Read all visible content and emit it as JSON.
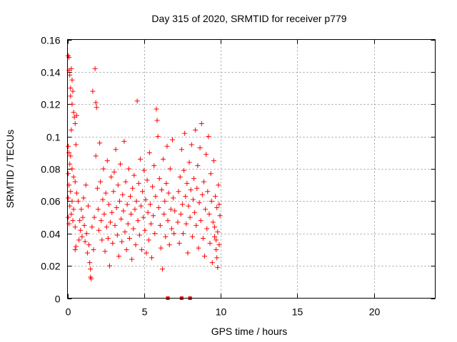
{
  "chart_data": {
    "type": "scatter",
    "title": "Day 315 of 2020, SRMTID for receiver p779",
    "xlabel": "GPS time / hours",
    "ylabel": "SRMTID / TECUs",
    "xlim": [
      0,
      24
    ],
    "ylim": [
      0,
      0.16
    ],
    "xticks": [
      0,
      5,
      10,
      15,
      20
    ],
    "xtick_labels": [
      "0",
      "5",
      "10",
      "15",
      "20"
    ],
    "yticks": [
      0,
      0.02,
      0.04,
      0.06,
      0.08,
      0.1,
      0.12,
      0.14,
      0.16
    ],
    "ytick_labels": [
      "0",
      "0.02",
      "0.04",
      "0.06",
      "0.08",
      "0.1",
      "0.12",
      "0.14",
      "0.16"
    ],
    "grid": true,
    "marker": "plus",
    "color": "#ff0000",
    "baseline_marks": [
      6.55,
      7.45,
      8.0
    ],
    "series": [
      {
        "name": "SRMTID",
        "points": [
          [
            0.05,
            0.15
          ],
          [
            0.1,
            0.149
          ],
          [
            0.1,
            0.141
          ],
          [
            0.15,
            0.138
          ],
          [
            0.2,
            0.13
          ],
          [
            0.25,
            0.142
          ],
          [
            0.3,
            0.135
          ],
          [
            0.2,
            0.125
          ],
          [
            0.35,
            0.128
          ],
          [
            0.3,
            0.12
          ],
          [
            0.4,
            0.115
          ],
          [
            0.45,
            0.112
          ],
          [
            0.5,
            0.108
          ],
          [
            0.25,
            0.104
          ],
          [
            0.6,
            0.113
          ],
          [
            0.55,
            0.095
          ],
          [
            0.05,
            0.094
          ],
          [
            0.1,
            0.09
          ],
          [
            0.2,
            0.088
          ],
          [
            0.15,
            0.083
          ],
          [
            0.3,
            0.08
          ],
          [
            0.05,
            0.077
          ],
          [
            0.4,
            0.075
          ],
          [
            0.5,
            0.072
          ],
          [
            0.1,
            0.07
          ],
          [
            0.2,
            0.066
          ],
          [
            0.05,
            0.062
          ],
          [
            0.3,
            0.06
          ],
          [
            0.15,
            0.057
          ],
          [
            0.4,
            0.055
          ],
          [
            0.25,
            0.052
          ],
          [
            0.05,
            0.05
          ],
          [
            0.35,
            0.048
          ],
          [
            0.1,
            0.046
          ],
          [
            0.5,
            0.044
          ],
          [
            0.6,
            0.065
          ],
          [
            0.7,
            0.06
          ],
          [
            0.55,
            0.032
          ],
          [
            0.5,
            0.03
          ],
          [
            0.75,
            0.036
          ],
          [
            0.8,
            0.048
          ],
          [
            0.85,
            0.042
          ],
          [
            0.9,
            0.055
          ],
          [
            0.95,
            0.038
          ],
          [
            1.0,
            0.05
          ],
          [
            1.05,
            0.062
          ],
          [
            1.1,
            0.045
          ],
          [
            1.15,
            0.035
          ],
          [
            1.2,
            0.07
          ],
          [
            1.25,
            0.04
          ],
          [
            1.3,
            0.028
          ],
          [
            1.35,
            0.057
          ],
          [
            1.4,
            0.033
          ],
          [
            1.45,
            0.022
          ],
          [
            1.5,
            0.018
          ],
          [
            1.5,
            0.013
          ],
          [
            1.55,
            0.012
          ],
          [
            1.6,
            0.044
          ],
          [
            1.65,
            0.128
          ],
          [
            1.7,
            0.03
          ],
          [
            1.75,
            0.05
          ],
          [
            1.8,
            0.142
          ],
          [
            1.85,
            0.121
          ],
          [
            1.9,
            0.118
          ],
          [
            1.85,
            0.088
          ],
          [
            1.95,
            0.068
          ],
          [
            2.0,
            0.055
          ],
          [
            2.05,
            0.042
          ],
          [
            2.1,
            0.096
          ],
          [
            2.15,
            0.072
          ],
          [
            2.2,
            0.048
          ],
          [
            2.25,
            0.036
          ],
          [
            2.3,
            0.061
          ],
          [
            2.35,
            0.08
          ],
          [
            2.4,
            0.052
          ],
          [
            2.45,
            0.029
          ],
          [
            2.5,
            0.065
          ],
          [
            2.55,
            0.044
          ],
          [
            2.6,
            0.085
          ],
          [
            2.65,
            0.037
          ],
          [
            2.7,
            0.058
          ],
          [
            2.75,
            0.02
          ],
          [
            2.8,
            0.047
          ],
          [
            2.85,
            0.075
          ],
          [
            2.9,
            0.053
          ],
          [
            2.95,
            0.034
          ],
          [
            3.0,
            0.066
          ],
          [
            3.05,
            0.078
          ],
          [
            3.1,
            0.045
          ],
          [
            3.15,
            0.092
          ],
          [
            3.2,
            0.056
          ],
          [
            3.25,
            0.039
          ],
          [
            3.3,
            0.07
          ],
          [
            3.35,
            0.026
          ],
          [
            3.4,
            0.06
          ],
          [
            3.45,
            0.083
          ],
          [
            3.5,
            0.049
          ],
          [
            3.55,
            0.035
          ],
          [
            3.6,
            0.064
          ],
          [
            3.65,
            0.054
          ],
          [
            3.7,
            0.097
          ],
          [
            3.75,
            0.041
          ],
          [
            3.8,
            0.072
          ],
          [
            3.85,
            0.03
          ],
          [
            3.9,
            0.058
          ],
          [
            3.95,
            0.046
          ],
          [
            4.0,
            0.08
          ],
          [
            4.05,
            0.037
          ],
          [
            4.1,
            0.063
          ],
          [
            4.15,
            0.052
          ],
          [
            4.2,
            0.024
          ],
          [
            4.25,
            0.068
          ],
          [
            4.3,
            0.043
          ],
          [
            4.35,
            0.076
          ],
          [
            4.4,
            0.055
          ],
          [
            4.45,
            0.033
          ],
          [
            4.5,
            0.06
          ],
          [
            4.55,
            0.122
          ],
          [
            4.6,
            0.048
          ],
          [
            4.65,
            0.071
          ],
          [
            4.7,
            0.039
          ],
          [
            4.75,
            0.086
          ],
          [
            4.8,
            0.057
          ],
          [
            4.85,
            0.03
          ],
          [
            4.9,
            0.066
          ],
          [
            4.95,
            0.05
          ],
          [
            5.0,
            0.079
          ],
          [
            5.05,
            0.042
          ],
          [
            5.1,
            0.061
          ],
          [
            5.15,
            0.028
          ],
          [
            5.2,
            0.073
          ],
          [
            5.25,
            0.053
          ],
          [
            5.3,
            0.036
          ],
          [
            5.35,
            0.09
          ],
          [
            5.4,
            0.058
          ],
          [
            5.45,
            0.046
          ],
          [
            5.5,
            0.025
          ],
          [
            5.55,
            0.069
          ],
          [
            5.6,
            0.051
          ],
          [
            5.65,
            0.082
          ],
          [
            5.7,
            0.04
          ],
          [
            5.75,
            0.063
          ],
          [
            5.8,
            0.117
          ],
          [
            5.85,
            0.11
          ],
          [
            5.9,
            0.1
          ],
          [
            5.95,
            0.056
          ],
          [
            6.0,
            0.074
          ],
          [
            6.05,
            0.045
          ],
          [
            6.1,
            0.031
          ],
          [
            6.15,
            0.067
          ],
          [
            6.2,
            0.018
          ],
          [
            6.25,
            0.086
          ],
          [
            6.3,
            0.052
          ],
          [
            6.35,
            0.06
          ],
          [
            6.4,
            0.038
          ],
          [
            6.45,
            0.071
          ],
          [
            6.5,
            0.094
          ],
          [
            6.55,
            0.048
          ],
          [
            6.6,
            0.065
          ],
          [
            6.65,
            0.033
          ],
          [
            6.7,
            0.08
          ],
          [
            6.75,
            0.055
          ],
          [
            6.8,
            0.043
          ],
          [
            6.85,
            0.098
          ],
          [
            6.9,
            0.062
          ],
          [
            6.95,
            0.04
          ],
          [
            7.0,
            0.054
          ],
          [
            7.2,
            0.047
          ],
          [
            7.25,
            0.066
          ],
          [
            7.3,
            0.034
          ],
          [
            7.35,
            0.075
          ],
          [
            7.4,
            0.052
          ],
          [
            7.45,
            0.092
          ],
          [
            7.5,
            0.058
          ],
          [
            7.55,
            0.04
          ],
          [
            7.6,
            0.079
          ],
          [
            7.65,
            0.102
          ],
          [
            7.7,
            0.063
          ],
          [
            7.75,
            0.046
          ],
          [
            7.8,
            0.071
          ],
          [
            7.85,
            0.028
          ],
          [
            7.9,
            0.057
          ],
          [
            7.95,
            0.084
          ],
          [
            8.0,
            0.05
          ],
          [
            8.05,
            0.067
          ],
          [
            8.1,
            0.095
          ],
          [
            8.15,
            0.038
          ],
          [
            8.2,
            0.061
          ],
          [
            8.25,
            0.074
          ],
          [
            8.3,
            0.053
          ],
          [
            8.35,
            0.104
          ],
          [
            8.4,
            0.045
          ],
          [
            8.45,
            0.068
          ],
          [
            8.5,
            0.082
          ],
          [
            8.55,
            0.031
          ],
          [
            8.6,
            0.059
          ],
          [
            8.65,
            0.093
          ],
          [
            8.7,
            0.048
          ],
          [
            8.75,
            0.108
          ],
          [
            8.8,
            0.064
          ],
          [
            8.85,
            0.037
          ],
          [
            8.9,
            0.072
          ],
          [
            8.95,
            0.026
          ],
          [
            9.0,
            0.055
          ],
          [
            9.05,
            0.089
          ],
          [
            9.1,
            0.043
          ],
          [
            9.15,
            0.066
          ],
          [
            9.2,
            0.1
          ],
          [
            9.25,
            0.052
          ],
          [
            9.3,
            0.034
          ],
          [
            9.35,
            0.077
          ],
          [
            9.4,
            0.06
          ],
          [
            9.45,
            0.022
          ],
          [
            9.5,
            0.047
          ],
          [
            9.55,
            0.085
          ],
          [
            9.6,
            0.038
          ],
          [
            9.65,
            0.063
          ],
          [
            9.7,
            0.03
          ],
          [
            9.75,
            0.056
          ],
          [
            9.8,
            0.041
          ],
          [
            9.85,
            0.07
          ],
          [
            9.9,
            0.033
          ],
          [
            9.95,
            0.051
          ],
          [
            9.8,
            0.019
          ],
          [
            9.6,
            0.044
          ],
          [
            9.7,
            0.036
          ],
          [
            9.9,
            0.058
          ],
          [
            9.75,
            0.025
          ]
        ]
      }
    ]
  }
}
